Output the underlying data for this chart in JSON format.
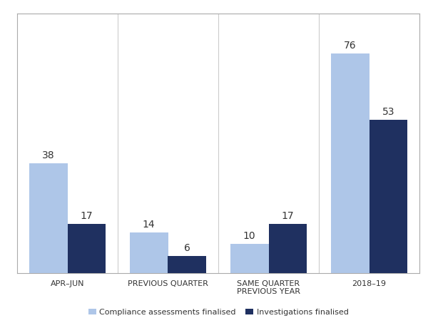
{
  "categories": [
    "APR–JUN",
    "PREVIOUS QUARTER",
    "SAME QUARTER\nPREVIOUS YEAR",
    "2018–19"
  ],
  "compliance_values": [
    38,
    14,
    10,
    76
  ],
  "investigation_values": [
    17,
    6,
    17,
    53
  ],
  "compliance_color": "#aec6e8",
  "investigation_color": "#1f3060",
  "bar_width": 0.38,
  "ylim": [
    0,
    90
  ],
  "legend_labels": [
    "Compliance assessments finalised",
    "Investigations finalised"
  ],
  "background_color": "#ffffff",
  "separator_color": "#cccccc",
  "border_color": "#aaaaaa",
  "text_color": "#333333",
  "tick_fontsize": 8,
  "legend_fontsize": 8,
  "annotation_fontsize": 10
}
